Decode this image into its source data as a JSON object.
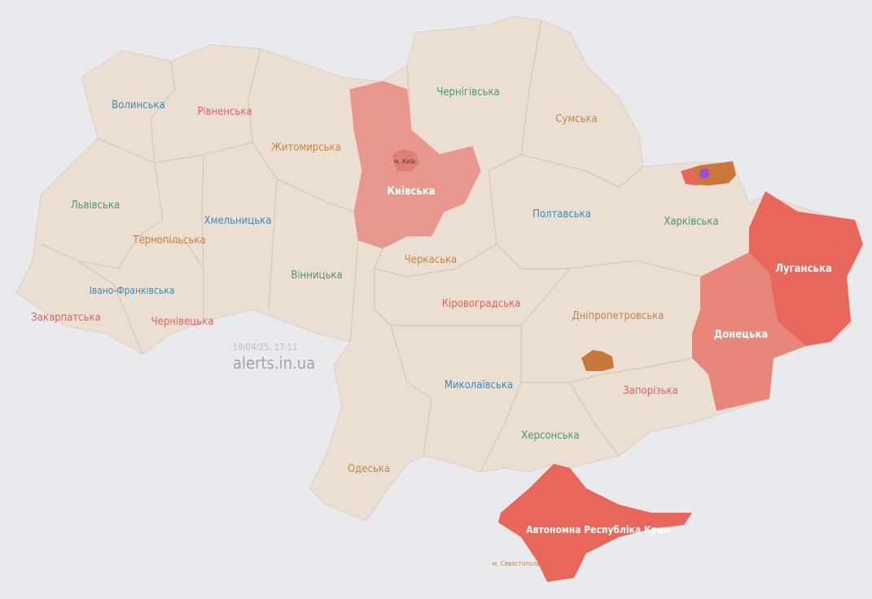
{
  "watermark": {
    "timestamp": "19/04/25, 17:11",
    "site": "alerts.in.ua"
  },
  "colors": {
    "background": "#e8eaed",
    "land": "#ebdfd3",
    "border": "#d6c6b4",
    "alert_high": "#e8665a",
    "alert_partial": "#e8867a",
    "alert_kyiv": "#e8978c",
    "community_alert": "#c9783a",
    "uav_marker": "#9b4be0"
  },
  "regions": [
    {
      "name": "Волинська",
      "color": "blue",
      "alert": false
    },
    {
      "name": "Рівненська",
      "color": "red",
      "alert": false
    },
    {
      "name": "Житомирська",
      "color": "orange",
      "alert": false
    },
    {
      "name": "Київська",
      "color": "white",
      "alert": true
    },
    {
      "name": "м. Київ",
      "color": "dark",
      "alert": true
    },
    {
      "name": "Чернігівська",
      "color": "green",
      "alert": false
    },
    {
      "name": "Сумська",
      "color": "orange",
      "alert": false
    },
    {
      "name": "Львівська",
      "color": "green",
      "alert": false
    },
    {
      "name": "Хмельницька",
      "color": "blue",
      "alert": false
    },
    {
      "name": "Тернопільська",
      "color": "orange",
      "alert": false
    },
    {
      "name": "Полтавська",
      "color": "blue",
      "alert": false
    },
    {
      "name": "Харківська",
      "color": "green",
      "alert": false
    },
    {
      "name": "Черкаська",
      "color": "orange",
      "alert": false
    },
    {
      "name": "Вінницька",
      "color": "green",
      "alert": false
    },
    {
      "name": "Луганська",
      "color": "white",
      "alert": true
    },
    {
      "name": "Івано-Франківська",
      "color": "blue",
      "alert": false
    },
    {
      "name": "Закарпатська",
      "color": "red",
      "alert": false
    },
    {
      "name": "Чернівецька",
      "color": "red",
      "alert": false
    },
    {
      "name": "Кіровоградська",
      "color": "red",
      "alert": false
    },
    {
      "name": "Дніпропетровська",
      "color": "orange",
      "alert": false
    },
    {
      "name": "Донецька",
      "color": "white",
      "alert": true
    },
    {
      "name": "Миколаївська",
      "color": "blue",
      "alert": false
    },
    {
      "name": "Запорізька",
      "color": "red",
      "alert": false
    },
    {
      "name": "Херсонська",
      "color": "green",
      "alert": false
    },
    {
      "name": "Одеська",
      "color": "orange",
      "alert": false
    },
    {
      "name": "Автономна Республіка Крим",
      "color": "white",
      "alert": true
    },
    {
      "name": "м. Севастополь",
      "color": "orange",
      "alert": false
    }
  ]
}
